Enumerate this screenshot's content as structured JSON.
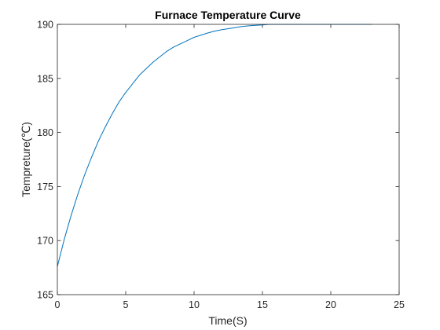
{
  "chart_data": {
    "type": "line",
    "title": "Furnace Temperature Curve",
    "xlabel": "Time(S)",
    "ylabel": "Tempreture(℃)",
    "xlim": [
      0,
      25
    ],
    "ylim": [
      165,
      190
    ],
    "xticks": [
      0,
      5,
      10,
      15,
      20,
      25
    ],
    "yticks": [
      165,
      170,
      175,
      180,
      185,
      190
    ],
    "grid": false,
    "box": true,
    "series": [
      {
        "color": "#0072bd",
        "x": [
          0,
          0.5,
          1,
          1.5,
          2,
          2.5,
          3,
          3.5,
          4,
          4.5,
          5,
          5.5,
          6,
          6.5,
          7,
          7.5,
          8,
          8.5,
          9,
          9.5,
          10,
          10.5,
          11,
          11.5,
          12,
          12.5,
          13,
          13.5,
          14,
          14.5,
          15,
          15.5,
          16,
          16.5,
          17,
          17.5,
          18,
          18.5,
          19,
          19.5,
          20,
          20.5,
          21,
          21.5,
          22,
          22.5,
          23
        ],
        "y": [
          167.6,
          170.1,
          172.3,
          174.3,
          176.1,
          177.7,
          179.2,
          180.5,
          181.7,
          182.8,
          183.7,
          184.5,
          185.3,
          185.9,
          186.5,
          187.0,
          187.5,
          187.9,
          188.2,
          188.5,
          188.8,
          189.0,
          189.2,
          189.37,
          189.5,
          189.6,
          189.7,
          189.8,
          189.86,
          189.91,
          189.95,
          190.0,
          190.03,
          190.06,
          190.08,
          190.1,
          190.13,
          190.14,
          190.16,
          190.17,
          190.18,
          190.19,
          190.2,
          190.21,
          190.22,
          190.22,
          190.23
        ]
      }
    ]
  }
}
